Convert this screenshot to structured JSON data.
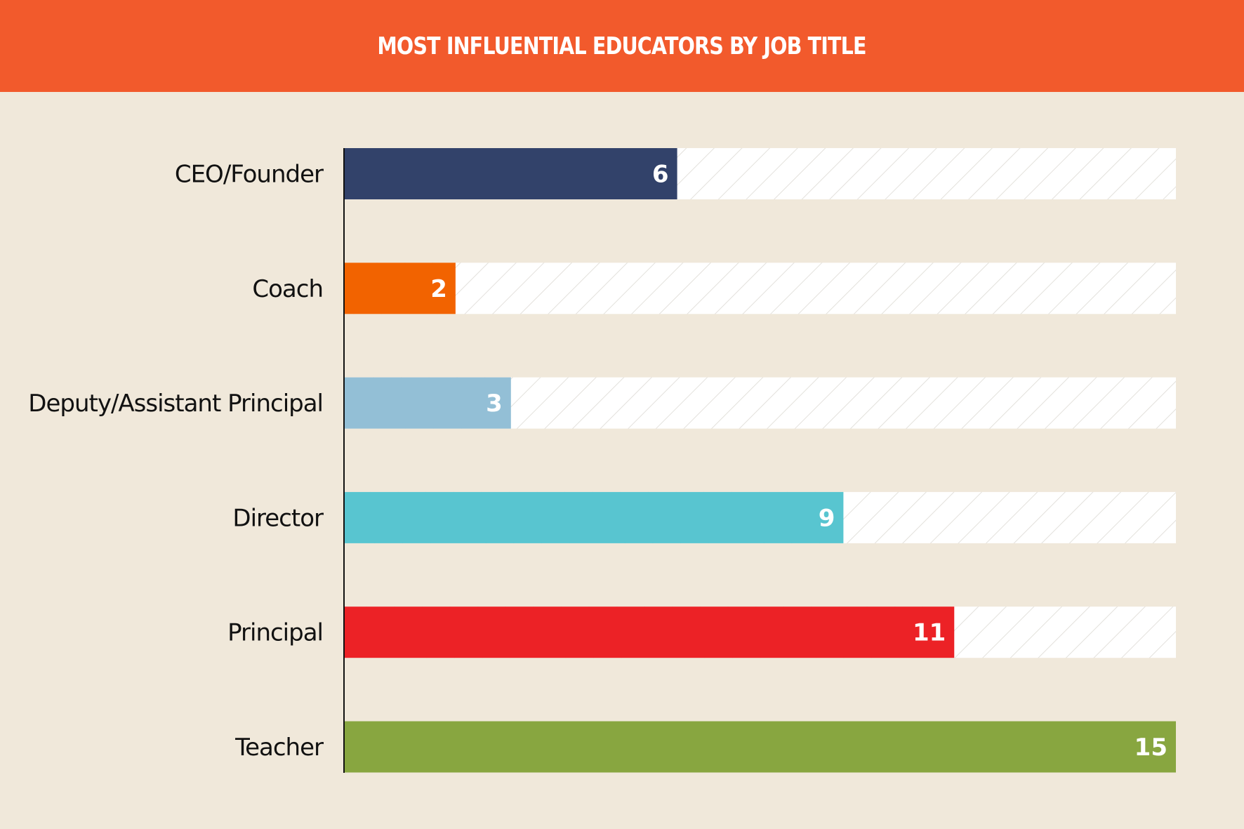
{
  "chart_data": {
    "type": "bar",
    "orientation": "horizontal",
    "title": "MOST INFLUENTIAL EDUCATORS BY JOB TITLE",
    "categories": [
      "CEO/Founder",
      "Coach",
      "Deputy/Assistant Principal",
      "Director",
      "Principal",
      "Teacher"
    ],
    "values": [
      6,
      2,
      3,
      9,
      11,
      15
    ],
    "colors": [
      "#32426a",
      "#f26300",
      "#93bfd6",
      "#58c5d0",
      "#ec2226",
      "#88a640"
    ],
    "xlim": [
      0,
      15
    ],
    "grid": false,
    "legend": "none",
    "background_track": "hatched"
  },
  "colors": {
    "header": "#f25a2c",
    "background": "#f0e8da",
    "track": "#ffffff",
    "hatch": "#e3e1dc"
  }
}
